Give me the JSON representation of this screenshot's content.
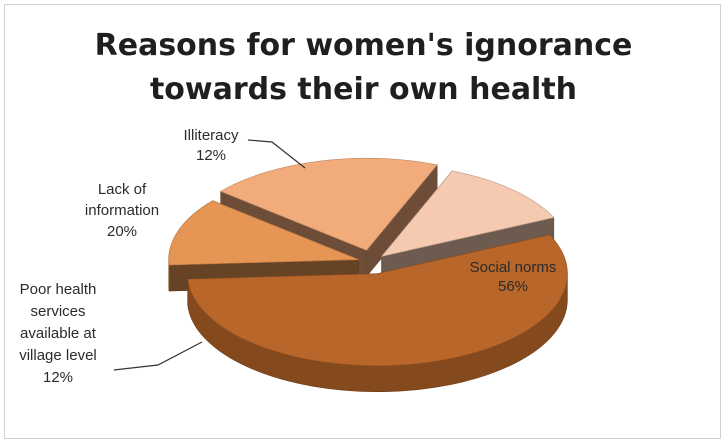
{
  "chart_data": {
    "type": "pie",
    "title_lines": [
      "Reasons for women's ignorance",
      "towards their own health"
    ],
    "slices": [
      {
        "label_lines": [
          "Social norms"
        ],
        "value": 56,
        "value_label": "56%",
        "color": "#b9662a"
      },
      {
        "label_lines": [
          "Poor health",
          "services",
          "available at",
          "village level"
        ],
        "value": 12,
        "value_label": "12%",
        "color": "#e59554"
      },
      {
        "label_lines": [
          "Lack of",
          "information"
        ],
        "value": 20,
        "value_label": "20%",
        "color": "#f2ab7a"
      },
      {
        "label_lines": [
          "Illiteracy"
        ],
        "value": 12,
        "value_label": "12%",
        "color": "#f5cab0"
      }
    ],
    "legend": "none",
    "style": "3d-exploded"
  }
}
